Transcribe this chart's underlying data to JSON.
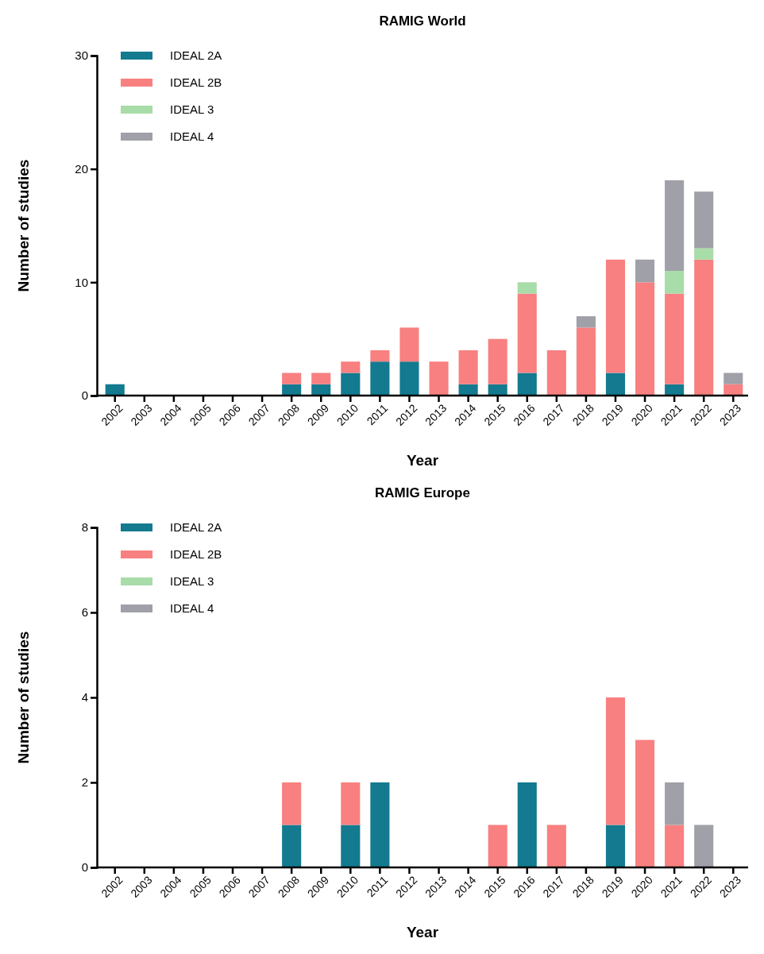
{
  "chart_data": [
    {
      "type": "bar",
      "title": "RAMIG World",
      "xlabel": "Year",
      "ylabel": "Number of studies",
      "stacked": true,
      "legend": "top left",
      "ylim": [
        0,
        30
      ],
      "yticks": [
        0,
        10,
        20,
        30
      ],
      "categories": [
        "2002",
        "2003",
        "2004",
        "2005",
        "2006",
        "2007",
        "2008",
        "2009",
        "2010",
        "2011",
        "2012",
        "2013",
        "2014",
        "2015",
        "2016",
        "2017",
        "2018",
        "2019",
        "2020",
        "2021",
        "2022",
        "2023"
      ],
      "series": [
        {
          "name": "IDEAL 2A",
          "color": "#137a8f",
          "values": [
            1,
            0,
            0,
            0,
            0,
            0,
            1,
            1,
            2,
            3,
            3,
            0,
            1,
            1,
            2,
            0,
            0,
            2,
            0,
            1,
            0,
            0
          ]
        },
        {
          "name": "IDEAL 2B",
          "color": "#f88080",
          "values": [
            0,
            0,
            0,
            0,
            0,
            0,
            1,
            1,
            1,
            1,
            3,
            3,
            3,
            4,
            7,
            4,
            6,
            10,
            10,
            8,
            12,
            1
          ]
        },
        {
          "name": "IDEAL 3",
          "color": "#a8dca8",
          "values": [
            0,
            0,
            0,
            0,
            0,
            0,
            0,
            0,
            0,
            0,
            0,
            0,
            0,
            0,
            1,
            0,
            0,
            0,
            0,
            2,
            1,
            0
          ]
        },
        {
          "name": "IDEAL 4",
          "color": "#a0a0a8",
          "values": [
            0,
            0,
            0,
            0,
            0,
            0,
            0,
            0,
            0,
            0,
            0,
            0,
            0,
            0,
            0,
            0,
            1,
            0,
            2,
            8,
            5,
            1
          ]
        }
      ]
    },
    {
      "type": "bar",
      "title": "RAMIG Europe",
      "xlabel": "Year",
      "ylabel": "Number of studies",
      "stacked": true,
      "legend": "top left",
      "ylim": [
        0,
        8
      ],
      "yticks": [
        0,
        2,
        4,
        6,
        8
      ],
      "categories": [
        "2002",
        "2003",
        "2004",
        "2005",
        "2006",
        "2007",
        "2008",
        "2009",
        "2010",
        "2011",
        "2012",
        "2013",
        "2014",
        "2015",
        "2016",
        "2017",
        "2018",
        "2019",
        "2020",
        "2021",
        "2022",
        "2023"
      ],
      "series": [
        {
          "name": "IDEAL 2A",
          "color": "#137a8f",
          "values": [
            0,
            0,
            0,
            0,
            0,
            0,
            1,
            0,
            1,
            2,
            0,
            0,
            0,
            0,
            2,
            0,
            0,
            1,
            0,
            0,
            0,
            0
          ]
        },
        {
          "name": "IDEAL 2B",
          "color": "#f88080",
          "values": [
            0,
            0,
            0,
            0,
            0,
            0,
            1,
            0,
            1,
            0,
            0,
            0,
            0,
            1,
            0,
            1,
            0,
            3,
            3,
            1,
            0,
            0
          ]
        },
        {
          "name": "IDEAL 3",
          "color": "#a8dca8",
          "values": [
            0,
            0,
            0,
            0,
            0,
            0,
            0,
            0,
            0,
            0,
            0,
            0,
            0,
            0,
            0,
            0,
            0,
            0,
            0,
            0,
            0,
            0
          ]
        },
        {
          "name": "IDEAL 4",
          "color": "#a0a0a8",
          "values": [
            0,
            0,
            0,
            0,
            0,
            0,
            0,
            0,
            0,
            0,
            0,
            0,
            0,
            0,
            0,
            0,
            0,
            0,
            0,
            1,
            1,
            0
          ]
        }
      ]
    }
  ]
}
